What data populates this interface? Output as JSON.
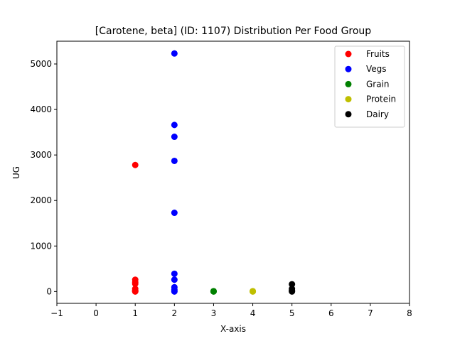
{
  "chart_data": {
    "type": "scatter",
    "title": "[Carotene, beta] (ID: 1107) Distribution Per Food Group",
    "xlabel": "X-axis",
    "ylabel": "UG",
    "xlim": [
      -1,
      8
    ],
    "ylim": [
      -260,
      5500
    ],
    "xticks": [
      -1,
      0,
      1,
      2,
      3,
      4,
      5,
      6,
      7,
      8
    ],
    "yticks": [
      0,
      1000,
      2000,
      3000,
      4000,
      5000
    ],
    "grid": false,
    "legend_position": "top-right",
    "series": [
      {
        "name": "Fruits",
        "color": "#ff0000",
        "points": [
          [
            1,
            2780
          ],
          [
            1,
            260
          ],
          [
            1,
            200
          ],
          [
            1,
            170
          ],
          [
            1,
            60
          ],
          [
            1,
            30
          ],
          [
            1,
            15
          ],
          [
            1,
            5
          ],
          [
            1,
            0
          ]
        ]
      },
      {
        "name": "Vegs",
        "color": "#0000ff",
        "points": [
          [
            2,
            5230
          ],
          [
            2,
            3660
          ],
          [
            2,
            3400
          ],
          [
            2,
            2870
          ],
          [
            2,
            1730
          ],
          [
            2,
            390
          ],
          [
            2,
            260
          ],
          [
            2,
            95
          ],
          [
            2,
            40
          ],
          [
            2,
            15
          ],
          [
            2,
            0
          ]
        ]
      },
      {
        "name": "Grain",
        "color": "#008000",
        "points": [
          [
            3,
            8
          ],
          [
            3,
            3
          ],
          [
            3,
            0
          ]
        ]
      },
      {
        "name": "Protein",
        "color": "#bfbf00",
        "points": [
          [
            4,
            8
          ],
          [
            4,
            3
          ],
          [
            4,
            0
          ]
        ]
      },
      {
        "name": "Dairy",
        "color": "#000000",
        "points": [
          [
            5,
            160
          ],
          [
            5,
            60
          ],
          [
            5,
            30
          ],
          [
            5,
            10
          ],
          [
            5,
            0
          ]
        ]
      }
    ]
  }
}
